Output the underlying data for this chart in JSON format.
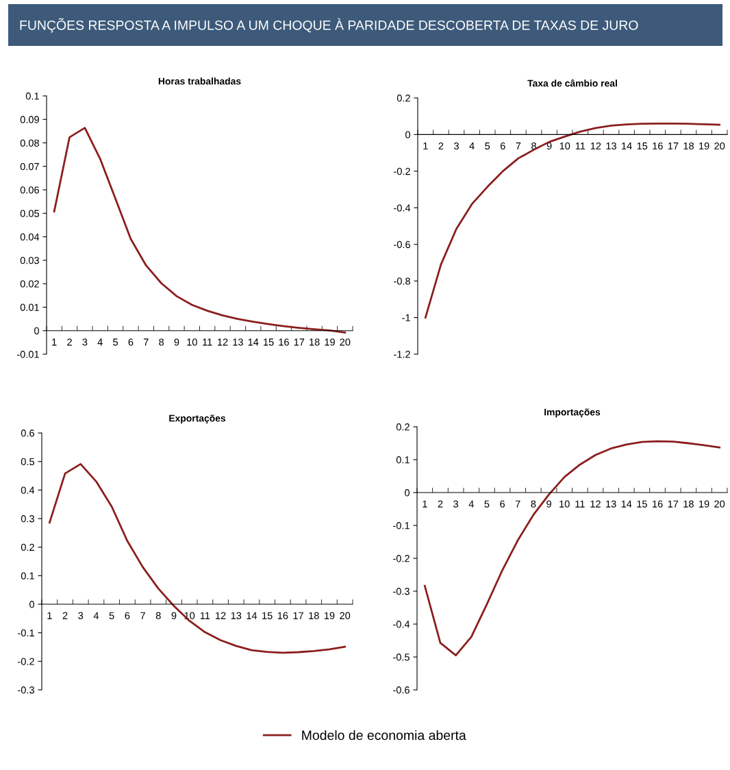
{
  "chart_data": [
    {
      "type": "line",
      "title": "Horas trabalhadas",
      "annotations": [
        "FUNÇÕES RESPOSTA A IMPULSO A UM CHOQUE À PARIDADE DESCOBERTA DE TAXAS DE JURO"
      ],
      "categories": [
        "1",
        "2",
        "3",
        "4",
        "5",
        "6",
        "7",
        "8",
        "9",
        "10",
        "11",
        "12",
        "13",
        "14",
        "15",
        "16",
        "17",
        "18",
        "19",
        "20"
      ],
      "series": [
        {
          "name": "Modelo de economia aberta",
          "color": "#8b1e1e",
          "values": [
            0.0508,
            0.0824,
            0.0864,
            0.0732,
            0.0562,
            0.0391,
            0.0278,
            0.0202,
            0.0147,
            0.011,
            0.0085,
            0.0065,
            0.005,
            0.0038,
            0.0028,
            0.0019,
            0.0012,
            0.0006,
            0.0001,
            -0.0008
          ]
        }
      ],
      "ylim": [
        -0.01,
        0.1
      ],
      "yticks": [
        -0.01,
        0,
        0.01,
        0.02,
        0.03,
        0.04,
        0.05,
        0.06,
        0.07,
        0.08,
        0.09,
        0.1
      ],
      "legend": "bottom",
      "grid": false
    },
    {
      "type": "line",
      "title": "Taxa de câmbio real",
      "categories": [
        "1",
        "2",
        "3",
        "4",
        "5",
        "6",
        "7",
        "8",
        "9",
        "10",
        "11",
        "12",
        "13",
        "14",
        "15",
        "16",
        "17",
        "18",
        "19",
        "20"
      ],
      "series": [
        {
          "color": "#8b1e1e",
          "values": [
            -1.0,
            -0.71,
            -0.515,
            -0.38,
            -0.286,
            -0.2,
            -0.13,
            -0.083,
            -0.04,
            -0.011,
            0.016,
            0.036,
            0.049,
            0.055,
            0.059,
            0.06,
            0.06,
            0.059,
            0.056,
            0.054
          ]
        }
      ],
      "ylim": [
        -1.2,
        0.2
      ],
      "yticks": [
        -1.2,
        -1,
        -0.8,
        -0.6,
        -0.4,
        -0.2,
        0,
        0.2
      ],
      "grid": false
    },
    {
      "type": "line",
      "title": "Exportações",
      "categories": [
        "1",
        "2",
        "3",
        "4",
        "5",
        "6",
        "7",
        "8",
        "9",
        "10",
        "11",
        "12",
        "13",
        "14",
        "15",
        "16",
        "17",
        "18",
        "19",
        "20"
      ],
      "series": [
        {
          "color": "#8b1e1e",
          "values": [
            0.286,
            0.458,
            0.491,
            0.43,
            0.342,
            0.222,
            0.13,
            0.055,
            -0.006,
            -0.058,
            -0.098,
            -0.126,
            -0.146,
            -0.161,
            -0.167,
            -0.17,
            -0.168,
            -0.164,
            -0.158,
            -0.149
          ]
        }
      ],
      "ylim": [
        -0.3,
        0.6
      ],
      "yticks": [
        -0.3,
        -0.2,
        -0.1,
        0,
        0.1,
        0.2,
        0.3,
        0.4,
        0.5,
        0.6
      ],
      "grid": false
    },
    {
      "type": "line",
      "title": "Importações",
      "categories": [
        "1",
        "2",
        "3",
        "4",
        "5",
        "6",
        "7",
        "8",
        "9",
        "10",
        "11",
        "12",
        "13",
        "14",
        "15",
        "16",
        "17",
        "18",
        "19",
        "20"
      ],
      "series": [
        {
          "color": "#8b1e1e",
          "values": [
            -0.284,
            -0.457,
            -0.495,
            -0.439,
            -0.34,
            -0.236,
            -0.145,
            -0.068,
            -0.006,
            0.047,
            0.085,
            0.114,
            0.134,
            0.146,
            0.154,
            0.156,
            0.155,
            0.15,
            0.144,
            0.137
          ]
        }
      ],
      "ylim": [
        -0.6,
        0.2
      ],
      "yticks": [
        -0.6,
        -0.5,
        -0.4,
        -0.3,
        -0.2,
        -0.1,
        0,
        0.1,
        0.2
      ],
      "grid": false
    }
  ]
}
